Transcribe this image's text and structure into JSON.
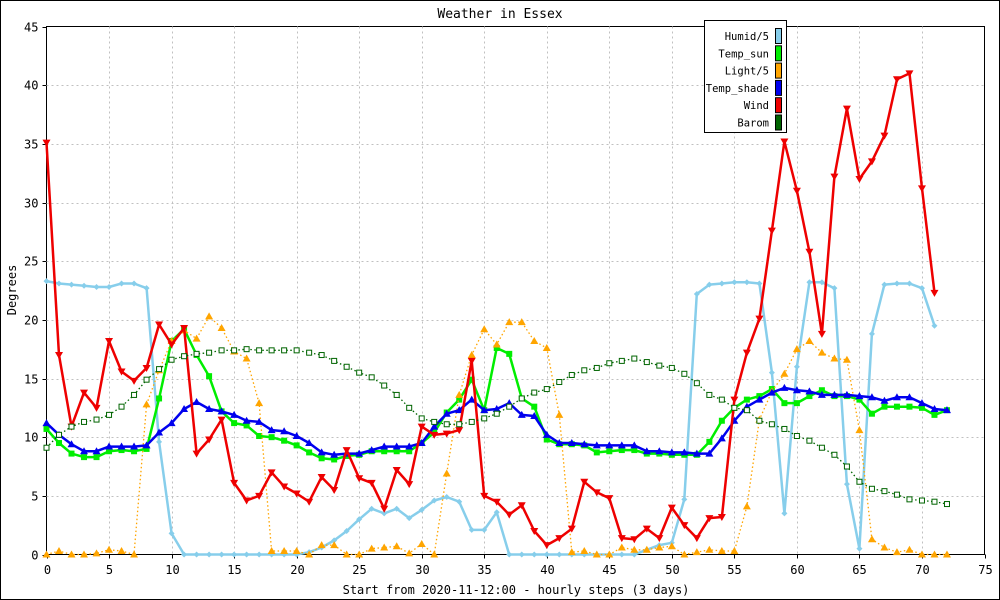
{
  "chart_data": {
    "type": "line",
    "title": "Weather in Essex",
    "xlabel": "Start from 2020-11-12:00 - hourly steps (3 days)",
    "ylabel": "Degrees",
    "xlim": [
      0,
      75
    ],
    "ylim": [
      0,
      45
    ],
    "x_ticks": [
      0,
      5,
      10,
      15,
      20,
      25,
      30,
      35,
      40,
      45,
      50,
      55,
      60,
      65,
      70,
      75
    ],
    "y_ticks": [
      0,
      5,
      10,
      15,
      20,
      25,
      30,
      35,
      40,
      45
    ],
    "grid": true,
    "legend_position": "top-right",
    "series": [
      {
        "name": "Humid/5",
        "color": "#87ceeb",
        "marker": "diamond",
        "style": "solid",
        "values": [
          23.3,
          23.1,
          23.0,
          22.9,
          22.8,
          22.8,
          23.1,
          23.1,
          22.7,
          9.6,
          1.8,
          0,
          0,
          0,
          0,
          0,
          0,
          0,
          0,
          0,
          0,
          0.2,
          0.6,
          1.2,
          2.0,
          3.0,
          3.9,
          3.5,
          3.9,
          3.1,
          3.8,
          4.6,
          4.9,
          4.5,
          2.1,
          2.1,
          3.6,
          0,
          0,
          0,
          0,
          0,
          0,
          0,
          0,
          0,
          0,
          0,
          0.4,
          0.8,
          1.0,
          4.7,
          22.2,
          23.0,
          23.1,
          23.2,
          23.2,
          23.1,
          15.5,
          3.5,
          16.0,
          23.2,
          23.2,
          22.7,
          6.0,
          0.5,
          18.8,
          23.0,
          23.1,
          23.1,
          22.7,
          19.5
        ]
      },
      {
        "name": "Temp_sun",
        "color": "#00ee00",
        "marker": "square",
        "style": "solid",
        "values": [
          10.7,
          9.5,
          8.6,
          8.3,
          8.3,
          8.8,
          8.9,
          8.8,
          9.0,
          13.3,
          18.2,
          19.2,
          17.0,
          15.2,
          12.2,
          11.2,
          11.0,
          10.1,
          10.0,
          9.7,
          9.3,
          8.7,
          8.2,
          8.1,
          8.4,
          8.5,
          8.8,
          8.8,
          8.8,
          8.8,
          9.5,
          10.4,
          12.1,
          13.2,
          14.9,
          12.3,
          17.6,
          17.1,
          13.3,
          12.6,
          9.8,
          9.4,
          9.4,
          9.3,
          8.7,
          8.8,
          8.9,
          8.9,
          8.6,
          8.6,
          8.5,
          8.5,
          8.5,
          9.6,
          11.4,
          12.5,
          13.2,
          13.5,
          14.1,
          12.9,
          12.9,
          13.5,
          14.0,
          13.5,
          13.5,
          13.2,
          12.0,
          12.6,
          12.6,
          12.6,
          12.5,
          11.9,
          12.3
        ]
      },
      {
        "name": "Light/5",
        "color": "#ffa500",
        "marker": "triangle-up",
        "style": "dotted",
        "values": [
          0,
          0.3,
          0,
          0,
          0.1,
          0.4,
          0.3,
          0,
          12.8,
          15.7,
          18.2,
          19.1,
          18.4,
          20.3,
          19.3,
          17.3,
          16.7,
          12.9,
          0.3,
          0.3,
          0.3,
          0,
          0.8,
          0.8,
          0,
          0,
          0.5,
          0.6,
          0.7,
          0.1,
          0.9,
          0,
          6.9,
          13.6,
          17.0,
          19.2,
          17.9,
          19.8,
          19.8,
          18.2,
          17.6,
          11.9,
          0.2,
          0.3,
          0,
          0,
          0.6,
          0.4,
          0.4,
          0.6,
          0.7,
          0,
          0.2,
          0.4,
          0.3,
          0.3,
          4.1,
          11.5,
          13.9,
          15.4,
          17.5,
          18.2,
          17.2,
          16.7,
          16.6,
          10.6,
          1.3,
          0.6,
          0.2,
          0.4,
          0,
          0,
          0
        ]
      },
      {
        "name": "Temp_shade",
        "color": "#0000ee",
        "marker": "triangle-up",
        "style": "solid",
        "values": [
          11.2,
          10.2,
          9.4,
          8.8,
          8.8,
          9.2,
          9.2,
          9.2,
          9.3,
          10.4,
          11.2,
          12.4,
          13.0,
          12.4,
          12.2,
          11.9,
          11.4,
          11.3,
          10.6,
          10.5,
          10.1,
          9.5,
          8.7,
          8.5,
          8.6,
          8.6,
          8.9,
          9.2,
          9.2,
          9.2,
          9.5,
          10.9,
          12.0,
          12.3,
          13.2,
          12.3,
          12.4,
          12.9,
          11.9,
          11.8,
          10.2,
          9.5,
          9.5,
          9.4,
          9.3,
          9.3,
          9.3,
          9.3,
          8.8,
          8.8,
          8.7,
          8.7,
          8.6,
          8.6,
          9.9,
          11.4,
          12.6,
          13.2,
          13.8,
          14.2,
          14.0,
          13.9,
          13.6,
          13.6,
          13.6,
          13.5,
          13.4,
          13.1,
          13.4,
          13.4,
          12.9,
          12.4,
          12.3
        ]
      },
      {
        "name": "Wind",
        "color": "#ee0000",
        "marker": "triangle-down",
        "style": "solid",
        "values": [
          35.1,
          17.0,
          10.9,
          13.8,
          12.5,
          18.2,
          15.6,
          14.8,
          15.9,
          19.6,
          17.9,
          19.3,
          8.6,
          9.8,
          11.5,
          6.1,
          4.6,
          5.0,
          7.0,
          5.8,
          5.2,
          4.5,
          6.6,
          5.5,
          8.9,
          6.5,
          6.1,
          3.9,
          7.2,
          6.0,
          10.9,
          10.2,
          10.3,
          10.6,
          16.5,
          5.0,
          4.5,
          3.4,
          4.2,
          2.0,
          0.8,
          1.4,
          2.2,
          6.2,
          5.3,
          4.8,
          1.4,
          1.3,
          2.2,
          1.4,
          4.0,
          2.5,
          1.4,
          3.1,
          3.2,
          13.2,
          17.2,
          20.1,
          27.6,
          35.2,
          31.0,
          25.8,
          18.8,
          32.2,
          38.0,
          32.0,
          33.5,
          35.7,
          40.5,
          41.0,
          31.2,
          22.3
        ]
      },
      {
        "name": "Barom",
        "color": "#006400",
        "marker": "hollow-square",
        "style": "dotted",
        "values": [
          9.1,
          10.2,
          10.9,
          11.3,
          11.5,
          11.9,
          12.6,
          13.6,
          14.9,
          15.8,
          16.6,
          16.9,
          17.1,
          17.2,
          17.4,
          17.4,
          17.5,
          17.4,
          17.4,
          17.4,
          17.4,
          17.2,
          17.0,
          16.5,
          16.0,
          15.5,
          15.1,
          14.4,
          13.6,
          12.5,
          11.6,
          11.3,
          11.1,
          11.1,
          11.3,
          11.6,
          12.0,
          12.6,
          13.3,
          13.8,
          14.1,
          14.7,
          15.3,
          15.7,
          15.9,
          16.3,
          16.5,
          16.7,
          16.4,
          16.1,
          15.9,
          15.4,
          14.6,
          13.6,
          13.2,
          12.5,
          12.3,
          11.4,
          11.1,
          10.7,
          10.1,
          9.7,
          9.1,
          8.5,
          7.5,
          6.2,
          5.6,
          5.4,
          5.1,
          4.7,
          4.6,
          4.5,
          4.3
        ]
      }
    ]
  }
}
